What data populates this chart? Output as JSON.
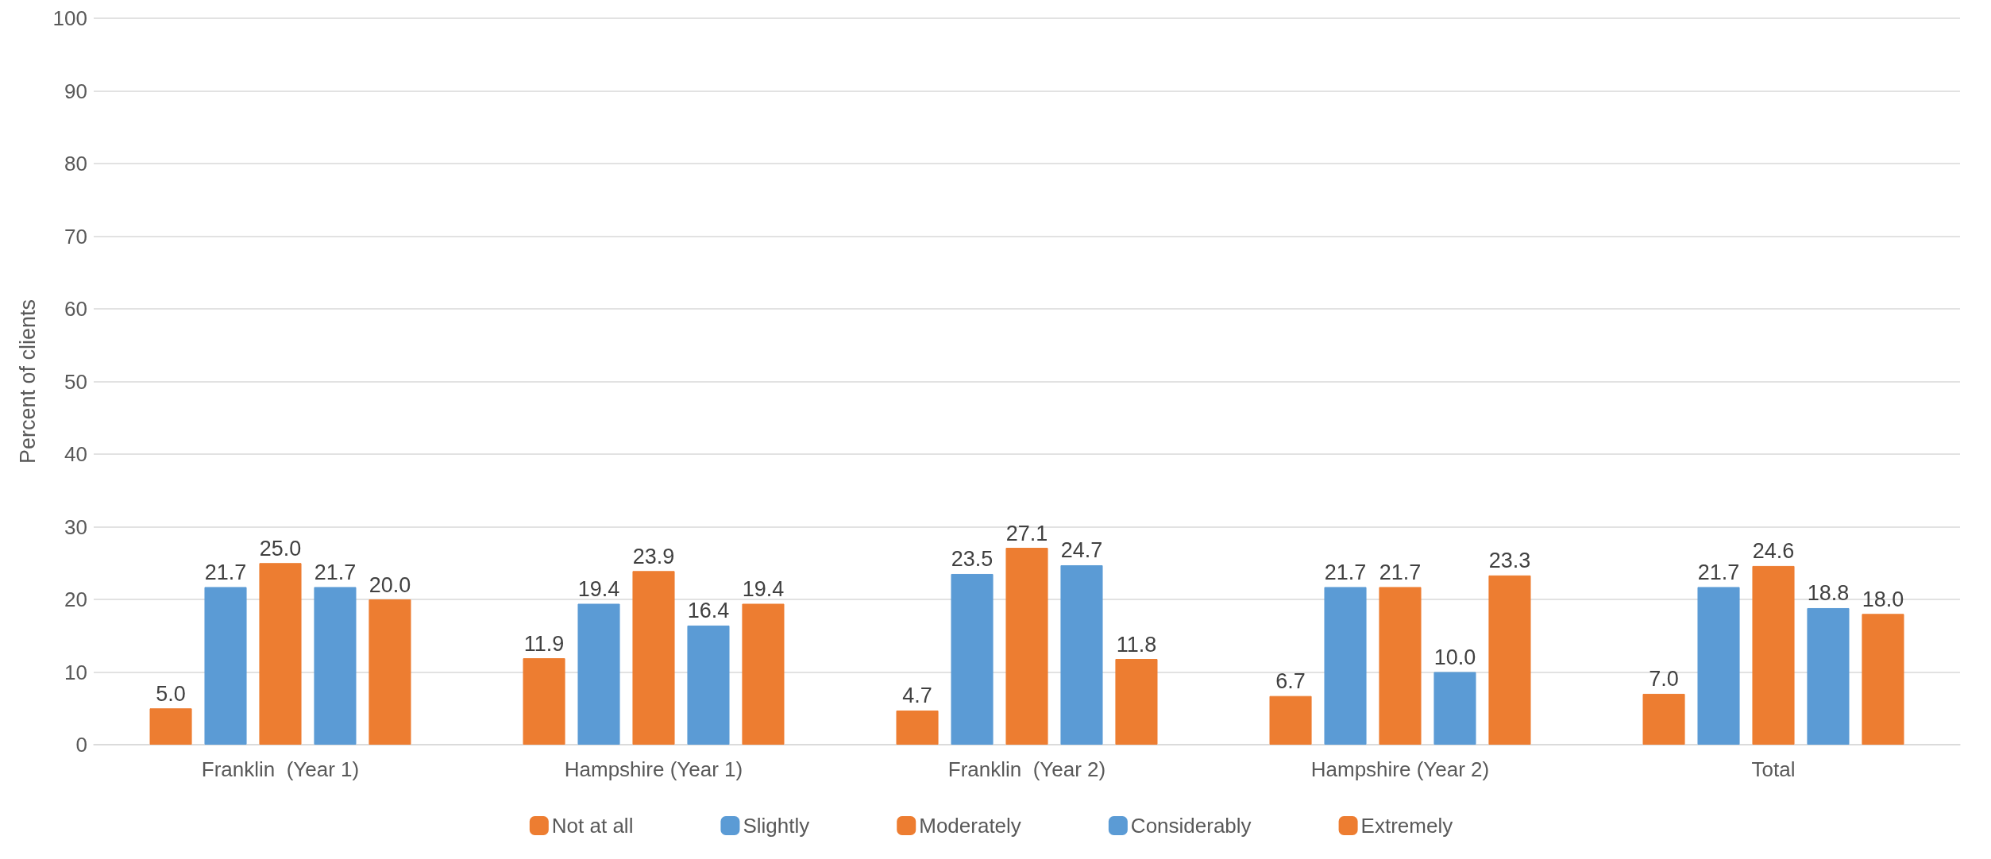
{
  "chart_data": {
    "type": "bar",
    "ylabel": "Percent of clients",
    "categories": [
      "Franklin  (Year 1)",
      "Hampshire (Year 1)",
      "Franklin  (Year 2)",
      "Hampshire (Year 2)",
      "Total"
    ],
    "series": [
      {
        "name": "Not at all",
        "color": "#ed7d31",
        "values": [
          5.0,
          11.9,
          4.7,
          6.7,
          7.0
        ],
        "value_labels": [
          "5.0",
          "11.9",
          "4.7",
          "6.7",
          "7.0"
        ]
      },
      {
        "name": "Slightly",
        "color": "#5b9bd5",
        "values": [
          21.7,
          19.4,
          23.5,
          21.7,
          21.7
        ],
        "value_labels": [
          "21.7",
          "19.4",
          "23.5",
          "21.7",
          "21.7"
        ]
      },
      {
        "name": "Moderately",
        "color": "#ed7d31",
        "values": [
          25.0,
          23.9,
          27.1,
          21.7,
          24.6
        ],
        "value_labels": [
          "25.0",
          "23.9",
          "27.1",
          "21.7",
          "24.6"
        ]
      },
      {
        "name": "Considerably",
        "color": "#5b9bd5",
        "values": [
          21.7,
          16.4,
          24.7,
          10.0,
          18.8
        ],
        "value_labels": [
          "21.7",
          "16.4",
          "24.7",
          "10.0",
          "18.8"
        ]
      },
      {
        "name": "Extremely",
        "color": "#ed7d31",
        "values": [
          20.0,
          19.4,
          11.8,
          23.3,
          18.0
        ],
        "value_labels": [
          "20.0",
          "19.4",
          "11.8",
          "23.3",
          "18.0"
        ]
      }
    ],
    "ylim": [
      0,
      100
    ],
    "yticks": [
      0,
      10,
      20,
      30,
      40,
      50,
      60,
      70,
      80,
      90,
      100
    ],
    "grid": "y",
    "legend": "bottom"
  }
}
